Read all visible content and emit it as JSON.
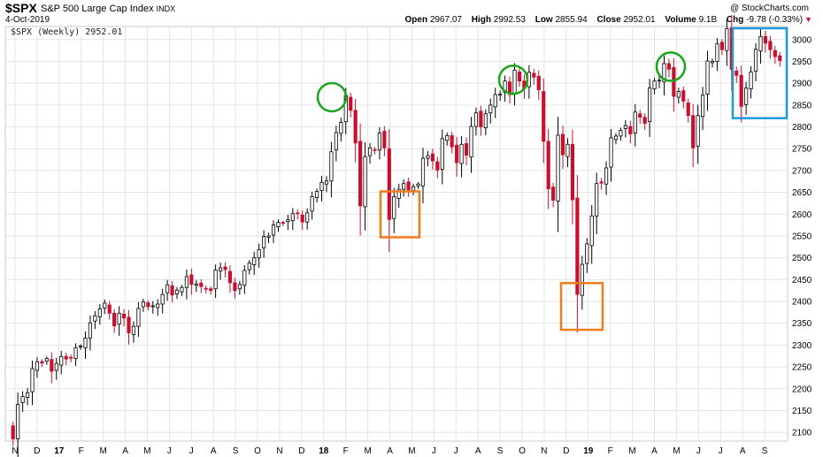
{
  "header": {
    "symbol": "$SPX",
    "name": "S&P 500 Large Cap Index",
    "exchange": "INDX",
    "date": "4-Oct-2019",
    "brand": "@ StockCharts.com",
    "open_label": "Open",
    "open": "2967.07",
    "high_label": "High",
    "high": "2992.53",
    "low_label": "Low",
    "low": "2855.94",
    "close_label": "Close",
    "close": "2952.01",
    "volume_label": "Volume",
    "volume": "9.1B",
    "chg_label": "Chg",
    "chg": "-9.78 (-0.33%)"
  },
  "legend": "$SPX (Weekly) 2952.01",
  "colors": {
    "up": "#000000",
    "down": "#c8102e",
    "grid": "#e3e3e3",
    "circle": "#1aa51a",
    "orange": "#f07c1c",
    "blue": "#1e9ad6"
  },
  "chart_data": {
    "type": "candlestick",
    "title": "$SPX (Weekly) 2952.01",
    "ylim": [
      2080,
      3030
    ],
    "y_ticks": [
      2100,
      2150,
      2200,
      2250,
      2300,
      2350,
      2400,
      2450,
      2500,
      2550,
      2600,
      2650,
      2700,
      2750,
      2800,
      2850,
      2900,
      2950,
      3000
    ],
    "x_tick_labels": [
      "N",
      "D",
      "17",
      "F",
      "M",
      "A",
      "M",
      "J",
      "J",
      "A",
      "S",
      "O",
      "N",
      "D",
      "18",
      "F",
      "M",
      "A",
      "M",
      "J",
      "J",
      "A",
      "S",
      "O",
      "N",
      "D",
      "19",
      "F",
      "M",
      "A",
      "M",
      "J",
      "J",
      "A",
      "S"
    ],
    "closes": [
      2085,
      2164,
      2182,
      2191,
      2246,
      2262,
      2259,
      2269,
      2240,
      2258,
      2274,
      2268,
      2271,
      2294,
      2298,
      2316,
      2351,
      2367,
      2383,
      2396,
      2373,
      2344,
      2373,
      2362,
      2328,
      2343,
      2384,
      2399,
      2388,
      2390,
      2394,
      2416,
      2438,
      2415,
      2426,
      2432,
      2457,
      2439,
      2440,
      2434,
      2429,
      2425,
      2472,
      2477,
      2473,
      2443,
      2425,
      2439,
      2471,
      2488,
      2500,
      2519,
      2549,
      2550,
      2575,
      2581,
      2579,
      2587,
      2601,
      2602,
      2582,
      2603,
      2640,
      2652,
      2673,
      2676,
      2743,
      2787,
      2810,
      2872,
      2838,
      2763,
      2619,
      2732,
      2752,
      2747,
      2786,
      2752,
      2588,
      2640,
      2657,
      2670,
      2656,
      2663,
      2669,
      2728,
      2734,
      2722,
      2701,
      2773,
      2780,
      2754,
      2718,
      2760,
      2735,
      2801,
      2832,
      2800,
      2830,
      2850,
      2874,
      2875,
      2905,
      2874,
      2930,
      2905,
      2888,
      2925,
      2914,
      2885,
      2767,
      2658,
      2632,
      2781,
      2736,
      2760,
      2633,
      2416,
      2485,
      2532,
      2596,
      2670,
      2671,
      2706,
      2775,
      2779,
      2792,
      2803,
      2784,
      2834,
      2822,
      2808,
      2889,
      2905,
      2907,
      2945,
      2932,
      2870,
      2881,
      2859,
      2826,
      2752,
      2826,
      2873,
      2951,
      2950,
      2990,
      2977,
      3025,
      2932,
      2918,
      2847,
      2889,
      2926,
      2978,
      3007,
      2992,
      2977,
      2961,
      2952
    ],
    "annotations": {
      "green_circles": [
        "Jan 2018 top",
        "Sep 2018 top",
        "Apr 2019 top"
      ],
      "orange_boxes": [
        "Apr 2018 low",
        "Dec 2018 low"
      ],
      "blue_box": "Jul–Oct 2019"
    }
  }
}
